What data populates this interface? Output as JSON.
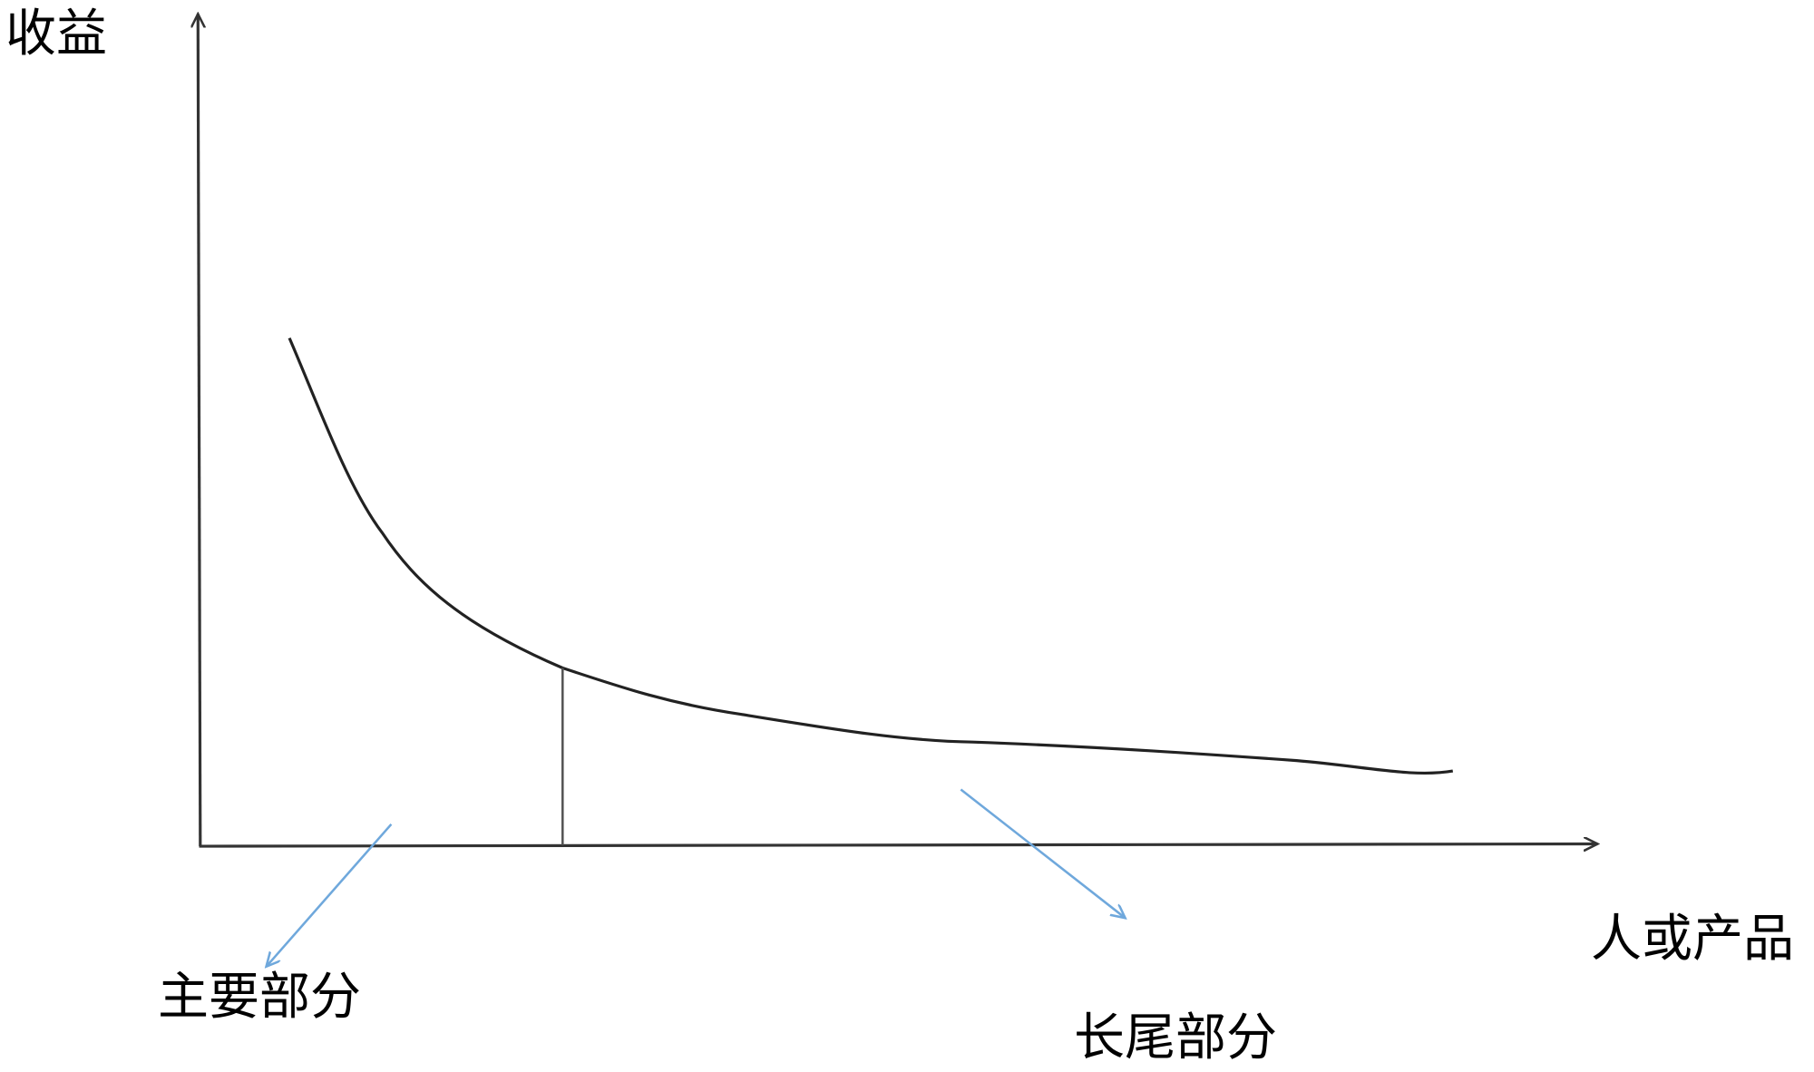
{
  "diagram": {
    "y_axis_label": "收益",
    "x_axis_label": "人或产品",
    "head_label": "主要部分",
    "tail_label": "长尾部分",
    "colors": {
      "curve": "#222222",
      "axes": "#333333",
      "pointer_arrows": "#6fa8dc"
    }
  }
}
